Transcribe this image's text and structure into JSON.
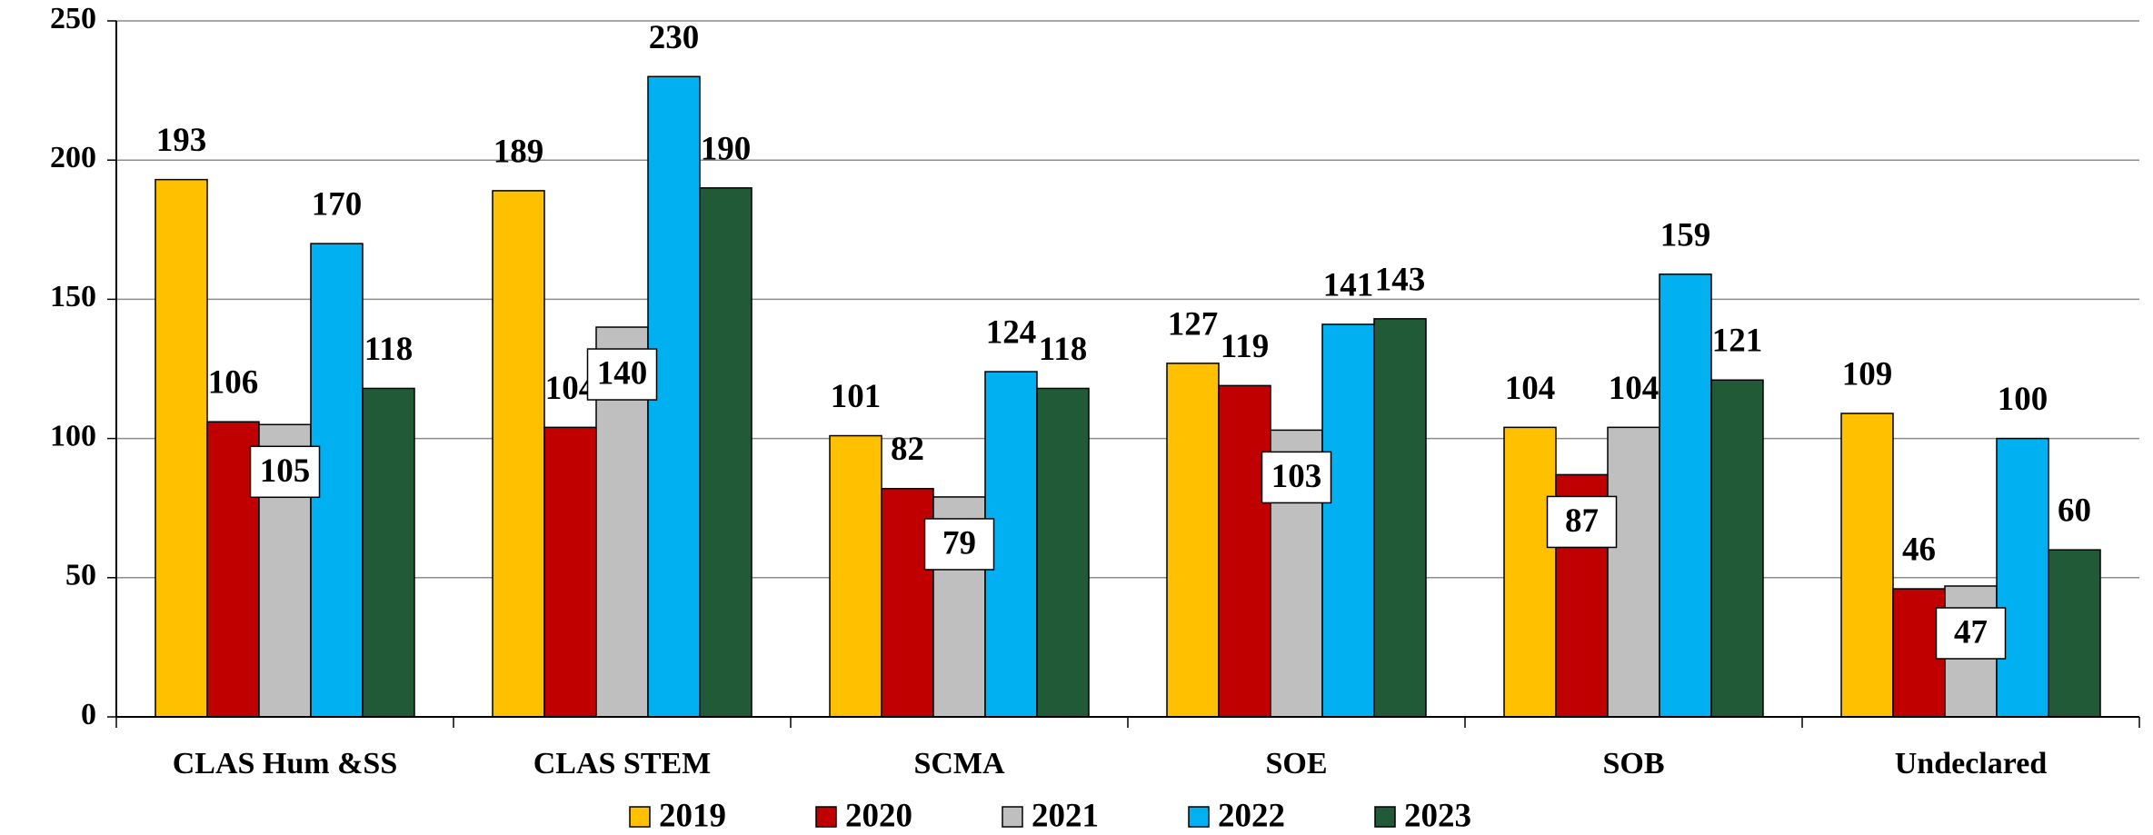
{
  "chart_data": {
    "type": "bar",
    "categories": [
      "CLAS Hum &SS",
      "CLAS STEM",
      "SCMA",
      "SOE",
      "SOB",
      "Undeclared"
    ],
    "series": [
      {
        "name": "2019",
        "color": "#FFC000",
        "values": [
          193,
          189,
          101,
          127,
          104,
          109
        ]
      },
      {
        "name": "2020",
        "color": "#C00000",
        "values": [
          106,
          104,
          82,
          119,
          87,
          46
        ]
      },
      {
        "name": "2021",
        "color": "#BFBFBF",
        "values": [
          105,
          140,
          79,
          103,
          104,
          47
        ]
      },
      {
        "name": "2022",
        "color": "#00B0F0",
        "values": [
          170,
          230,
          124,
          141,
          159,
          100
        ]
      },
      {
        "name": "2023",
        "color": "#215A36",
        "values": [
          118,
          190,
          118,
          143,
          121,
          60
        ]
      }
    ],
    "ylim": [
      0,
      250
    ],
    "yticks": [
      0,
      50,
      100,
      150,
      200,
      250
    ],
    "grid": true,
    "legend": "bottom"
  }
}
